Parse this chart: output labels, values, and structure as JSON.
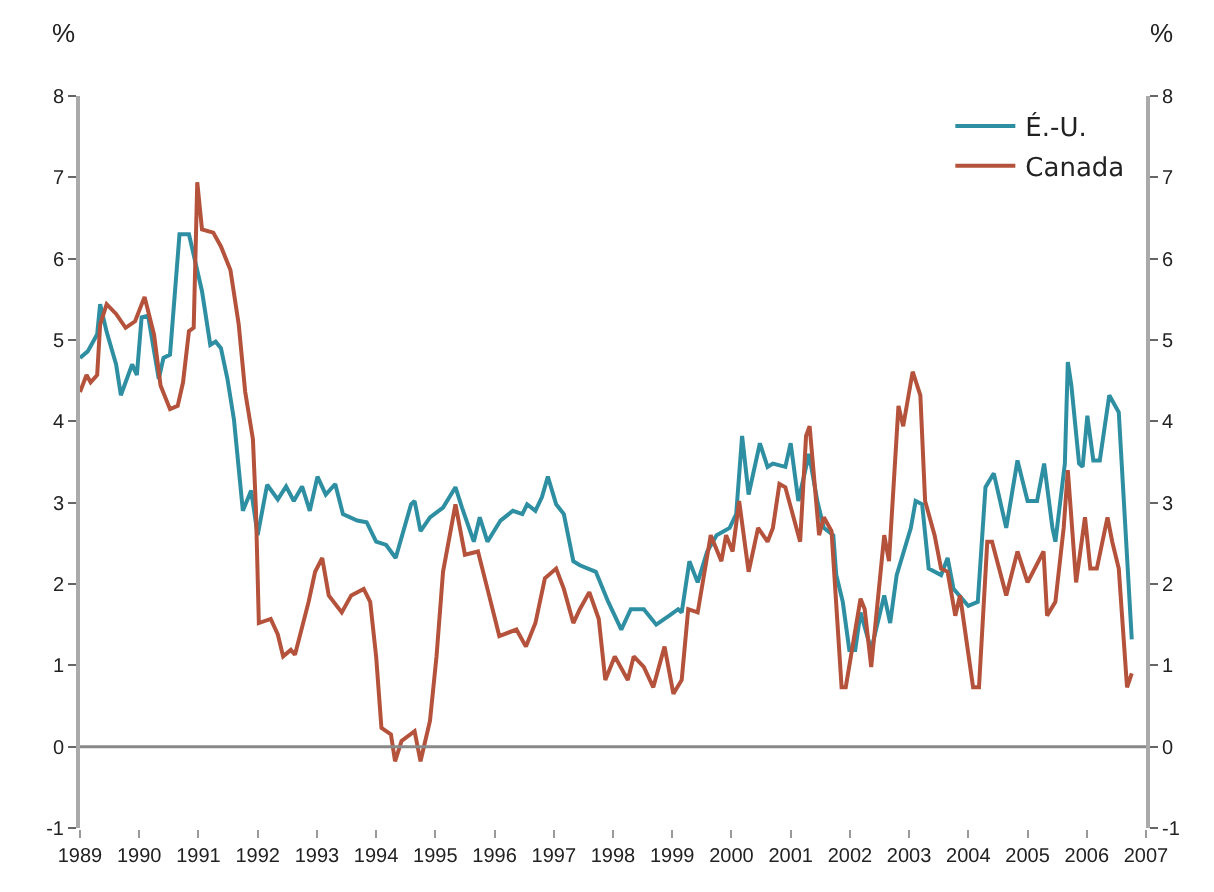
{
  "chart_data": {
    "type": "line",
    "ylabel": "%",
    "y2label": "%",
    "xlim": [
      1989,
      2007
    ],
    "xticks": [
      1989,
      1990,
      1991,
      1992,
      1993,
      1994,
      1995,
      1996,
      1997,
      1998,
      1999,
      2000,
      2001,
      2002,
      2003,
      2004,
      2005,
      2006,
      2007
    ],
    "ylim": [
      -1,
      8
    ],
    "yticks": [
      -1,
      0,
      1,
      2,
      3,
      4,
      5,
      6,
      7,
      8
    ],
    "y2lim": [
      -1,
      8
    ],
    "y2ticks": [
      -1,
      0,
      1,
      2,
      3,
      4,
      5,
      6,
      7,
      8
    ],
    "ref_lines": [
      {
        "axis": "y",
        "value": 0,
        "color": "#888888"
      }
    ],
    "legend": "top right",
    "marker": "none",
    "line_style": "solid",
    "series": [
      {
        "name": "É.-U.",
        "color": "#2e8fa3",
        "x": [
          1989.0,
          1989.13,
          1989.29,
          1989.34,
          1989.45,
          1989.61,
          1989.69,
          1989.88,
          1989.96,
          1990.04,
          1990.15,
          1990.33,
          1990.41,
          1990.52,
          1990.68,
          1990.84,
          1991.06,
          1991.2,
          1991.29,
          1991.38,
          1991.49,
          1991.6,
          1991.75,
          1991.89,
          1992.0,
          1992.16,
          1992.34,
          1992.48,
          1992.61,
          1992.75,
          1992.88,
          1993.01,
          1993.15,
          1993.31,
          1993.44,
          1993.68,
          1993.84,
          1994.0,
          1994.17,
          1994.33,
          1994.59,
          1994.65,
          1994.75,
          1994.91,
          1995.13,
          1995.34,
          1995.45,
          1995.65,
          1995.75,
          1995.88,
          1996.1,
          1996.31,
          1996.47,
          1996.55,
          1996.69,
          1996.8,
          1996.9,
          1997.04,
          1997.17,
          1997.33,
          1997.44,
          1997.71,
          1997.92,
          1998.14,
          1998.3,
          1998.52,
          1998.73,
          1998.95,
          1999.1,
          1999.16,
          1999.29,
          1999.43,
          1999.59,
          1999.75,
          1999.97,
          2000.08,
          2000.18,
          2000.29,
          2000.48,
          2000.61,
          2000.7,
          2000.91,
          2001.0,
          2001.13,
          2001.31,
          2001.45,
          2001.56,
          2001.72,
          2001.77,
          2001.88,
          2001.99,
          2002.09,
          2002.18,
          2002.36,
          2002.58,
          2002.68,
          2002.79,
          2003.03,
          2003.11,
          2003.22,
          2003.33,
          2003.54,
          2003.65,
          2003.75,
          2004.0,
          2004.16,
          2004.29,
          2004.43,
          2004.64,
          2004.83,
          2005.0,
          2005.16,
          2005.28,
          2005.42,
          2005.47,
          2005.63,
          2005.68,
          2005.74,
          2005.87,
          2005.93,
          2006.01,
          2006.11,
          2006.22,
          2006.38,
          2006.54,
          2006.76
        ],
        "values": [
          4.78,
          4.86,
          5.07,
          5.44,
          5.1,
          4.7,
          4.32,
          4.7,
          4.57,
          5.28,
          5.3,
          4.52,
          4.78,
          4.82,
          6.3,
          6.3,
          5.6,
          4.94,
          4.98,
          4.9,
          4.52,
          4.02,
          2.9,
          3.15,
          2.6,
          3.22,
          3.04,
          3.2,
          3.02,
          3.2,
          2.9,
          3.32,
          3.1,
          3.23,
          2.86,
          2.78,
          2.76,
          2.52,
          2.48,
          2.32,
          2.98,
          3.02,
          2.65,
          2.82,
          2.94,
          3.19,
          2.94,
          2.52,
          2.82,
          2.52,
          2.78,
          2.9,
          2.86,
          2.98,
          2.9,
          3.07,
          3.32,
          2.98,
          2.86,
          2.28,
          2.23,
          2.15,
          1.78,
          1.44,
          1.69,
          1.69,
          1.5,
          1.61,
          1.69,
          1.65,
          2.28,
          2.02,
          2.4,
          2.6,
          2.69,
          2.86,
          3.82,
          3.1,
          3.73,
          3.44,
          3.48,
          3.44,
          3.73,
          3.02,
          3.6,
          3.02,
          2.69,
          2.6,
          2.11,
          1.78,
          1.19,
          1.19,
          1.65,
          1.19,
          1.86,
          1.52,
          2.11,
          2.69,
          3.02,
          2.98,
          2.19,
          2.11,
          2.32,
          1.94,
          1.73,
          1.78,
          3.19,
          3.36,
          2.69,
          3.52,
          3.02,
          3.02,
          3.48,
          2.69,
          2.52,
          3.48,
          4.73,
          4.44,
          3.48,
          3.44,
          4.07,
          3.52,
          3.52,
          4.32,
          4.11,
          1.32
        ]
      },
      {
        "name": "Canada",
        "color": "#b5523b",
        "x": [
          1989.0,
          1989.11,
          1989.18,
          1989.29,
          1989.34,
          1989.45,
          1989.61,
          1989.77,
          1989.93,
          1990.09,
          1990.25,
          1990.36,
          1990.52,
          1990.65,
          1990.74,
          1990.84,
          1990.92,
          1990.98,
          1991.06,
          1991.25,
          1991.38,
          1991.54,
          1991.68,
          1991.79,
          1991.92,
          1991.97,
          1992.02,
          1992.22,
          1992.34,
          1992.43,
          1992.56,
          1992.63,
          1992.86,
          1992.97,
          1993.09,
          1993.2,
          1993.42,
          1993.58,
          1993.79,
          1993.9,
          1994.0,
          1994.09,
          1994.25,
          1994.32,
          1994.43,
          1994.65,
          1994.75,
          1994.91,
          1995.02,
          1995.13,
          1995.34,
          1995.5,
          1995.72,
          1995.88,
          1996.08,
          1996.37,
          1996.53,
          1996.69,
          1996.85,
          1997.04,
          1997.17,
          1997.33,
          1997.44,
          1997.6,
          1997.76,
          1997.87,
          1998.03,
          1998.25,
          1998.35,
          1998.52,
          1998.68,
          1998.87,
          1999.02,
          1999.16,
          1999.27,
          1999.43,
          1999.65,
          1999.83,
          1999.91,
          2000.02,
          2000.13,
          2000.29,
          2000.45,
          2000.61,
          2000.7,
          2000.81,
          2000.91,
          2001.16,
          2001.26,
          2001.32,
          2001.48,
          2001.56,
          2001.69,
          2001.86,
          2001.93,
          2002.18,
          2002.25,
          2002.36,
          2002.58,
          2002.66,
          2002.82,
          2002.9,
          2003.06,
          2003.19,
          2003.27,
          2003.43,
          2003.54,
          2003.65,
          2003.78,
          2003.86,
          2004.08,
          2004.18,
          2004.32,
          2004.4,
          2004.64,
          2004.83,
          2005.0,
          2005.27,
          2005.33,
          2005.47,
          2005.61,
          2005.68,
          2005.82,
          2005.97,
          2006.06,
          2006.17,
          2006.35,
          2006.43,
          2006.54,
          2006.68,
          2006.76
        ],
        "values": [
          4.36,
          4.57,
          4.48,
          4.57,
          5.19,
          5.44,
          5.32,
          5.15,
          5.23,
          5.53,
          5.07,
          4.44,
          4.15,
          4.19,
          4.48,
          5.11,
          5.15,
          6.94,
          6.36,
          6.32,
          6.15,
          5.86,
          5.19,
          4.36,
          3.78,
          2.94,
          1.52,
          1.57,
          1.38,
          1.11,
          1.19,
          1.13,
          1.78,
          2.15,
          2.32,
          1.86,
          1.65,
          1.86,
          1.94,
          1.78,
          1.11,
          0.23,
          0.15,
          -0.18,
          0.07,
          0.19,
          -0.18,
          0.32,
          1.11,
          2.15,
          2.98,
          2.36,
          2.4,
          1.94,
          1.36,
          1.44,
          1.23,
          1.52,
          2.07,
          2.19,
          1.94,
          1.52,
          1.69,
          1.9,
          1.57,
          0.82,
          1.11,
          0.82,
          1.11,
          0.98,
          0.73,
          1.23,
          0.65,
          0.82,
          1.69,
          1.65,
          2.6,
          2.28,
          2.6,
          2.4,
          3.02,
          2.15,
          2.69,
          2.52,
          2.69,
          3.23,
          3.19,
          2.52,
          3.82,
          3.94,
          2.6,
          2.82,
          2.65,
          0.73,
          0.73,
          1.82,
          1.69,
          0.98,
          2.6,
          2.28,
          4.19,
          3.94,
          4.61,
          4.32,
          3.02,
          2.6,
          2.19,
          2.15,
          1.61,
          1.86,
          0.73,
          0.73,
          2.52,
          2.52,
          1.86,
          2.4,
          2.02,
          2.4,
          1.61,
          1.78,
          2.69,
          3.4,
          2.02,
          2.82,
          2.19,
          2.19,
          2.82,
          2.52,
          2.19,
          0.73,
          0.9
        ]
      }
    ]
  }
}
